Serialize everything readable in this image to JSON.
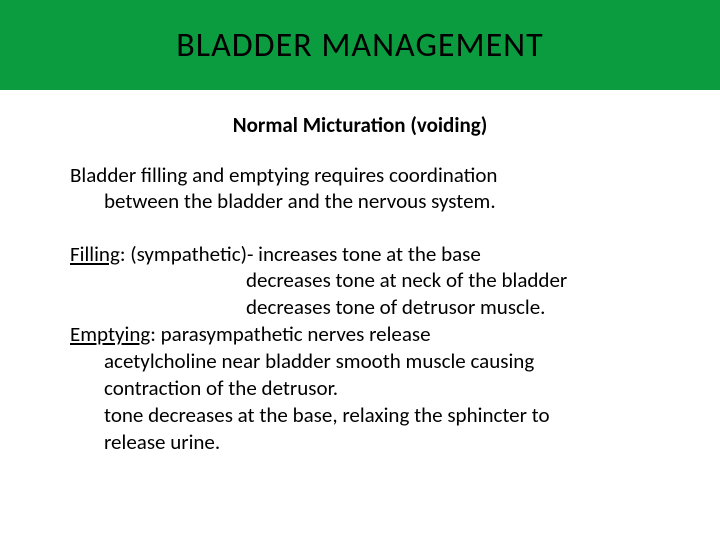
{
  "header": {
    "title": "BLADDER MANAGEMENT"
  },
  "subtitle": "Normal Micturation (voiding)",
  "intro": {
    "line1": "Bladder filling and emptying requires coordination",
    "line2": "between the bladder and the nervous system."
  },
  "filling": {
    "label": "Filling",
    "rest": ": (sympathetic)- increases tone at the base",
    "l2": "decreases tone at neck of the bladder",
    "l3": "decreases tone of detrusor muscle."
  },
  "emptying": {
    "label": "Emptying",
    "rest": ": parasympathetic nerves release",
    "l2": "acetylcholine near bladder smooth muscle causing",
    "l3": "contraction of the detrusor.",
    "l4": "tone decreases at the base, relaxing the sphincter to",
    "l5": "release urine."
  },
  "colors": {
    "header_bg": "#0a9c3f",
    "text": "#000000",
    "bg": "#ffffff"
  }
}
